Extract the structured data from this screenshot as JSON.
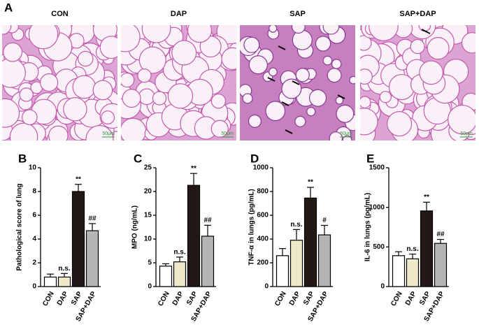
{
  "panel_a": {
    "label": "A",
    "images": [
      "CON",
      "DAP",
      "SAP",
      "SAP+DAP"
    ],
    "scale_bar": "50μm"
  },
  "chart_data": [
    {
      "type": "bar",
      "panel": "B",
      "ylabel": "Pathological score of lung",
      "categories": [
        "CON",
        "DAP",
        "SAP",
        "SAP+DAP"
      ],
      "values": [
        0.8,
        0.8,
        8,
        4.7
      ],
      "errors": [
        0.25,
        0.3,
        0.6,
        0.6
      ],
      "annotations": [
        null,
        "n.s.",
        "**",
        "##"
      ],
      "colors": [
        "#ffffff",
        "#efe9c9",
        "#231816",
        "#b5b5b5"
      ],
      "ylim": [
        0,
        10
      ],
      "yticks": [
        0,
        2,
        4,
        6,
        8,
        10
      ]
    },
    {
      "type": "bar",
      "panel": "C",
      "ylabel": "MPO (ng/mL)",
      "categories": [
        "CON",
        "DAP",
        "SAP",
        "SAP+DAP"
      ],
      "values": [
        4.3,
        5.2,
        21.3,
        10.6
      ],
      "errors": [
        0.5,
        1.0,
        2.5,
        2.3
      ],
      "annotations": [
        null,
        "n.s.",
        "**",
        "##"
      ],
      "colors": [
        "#ffffff",
        "#efe9c9",
        "#231816",
        "#b5b5b5"
      ],
      "ylim": [
        0,
        25
      ],
      "yticks": [
        0,
        5,
        10,
        15,
        20,
        25
      ]
    },
    {
      "type": "bar",
      "panel": "D",
      "ylabel": "TNF-α in lungs (pg/mL)",
      "categories": [
        "CON",
        "DAP",
        "SAP",
        "SAP+DAP"
      ],
      "values": [
        260,
        390,
        745,
        435
      ],
      "errors": [
        60,
        90,
        90,
        80
      ],
      "annotations": [
        null,
        "n.s.",
        "**",
        "#"
      ],
      "colors": [
        "#ffffff",
        "#efe9c9",
        "#231816",
        "#b5b5b5"
      ],
      "ylim": [
        0,
        1000
      ],
      "yticks": [
        0,
        200,
        400,
        600,
        800,
        1000
      ]
    },
    {
      "type": "bar",
      "panel": "E",
      "ylabel": "IL-6 in lungs (pg/mL)",
      "categories": [
        "CON",
        "DAP",
        "SAP",
        "SAP+DAP"
      ],
      "values": [
        390,
        350,
        955,
        545
      ],
      "errors": [
        50,
        60,
        110,
        50
      ],
      "annotations": [
        null,
        "n.s.",
        "**",
        "##"
      ],
      "colors": [
        "#ffffff",
        "#efe9c9",
        "#231816",
        "#b5b5b5"
      ],
      "ylim": [
        0,
        1500
      ],
      "yticks": [
        0,
        500,
        1000,
        1500
      ]
    }
  ]
}
